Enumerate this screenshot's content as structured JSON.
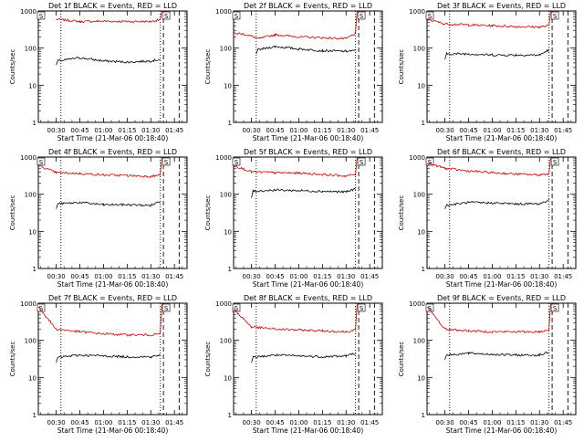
{
  "figure": {
    "background": "#ffffff"
  },
  "chart_data": [
    {
      "type": "line",
      "title": "Det 1f BLACK = Events, RED = LLD",
      "xlabel": "Start Time (21-Mar-06 00:18:40)",
      "ylabel": "Counts/sec",
      "yscale": "log",
      "ylim": [
        1,
        1000
      ],
      "xlim": [
        "00:18:40",
        "01:53:00"
      ],
      "x_ticks": [
        "00:30",
        "00:45",
        "01:00",
        "01:15",
        "01:30",
        "01:45"
      ],
      "y_ticks": [
        "1",
        "10",
        "100",
        "1000"
      ],
      "grid": false,
      "colors": {
        "events": "#000000",
        "lld": "#cc0000"
      },
      "markers": {
        "dashed": [
          "00:18:40",
          "01:38",
          "01:48"
        ],
        "dotted": [
          "00:33",
          "01:36"
        ]
      },
      "marker_label": "S",
      "series": [
        {
          "name": "RED = LLD",
          "x": [
            "00:30",
            "00:45",
            "01:00",
            "01:15",
            "01:30",
            "01:36",
            "01:37"
          ],
          "values": [
            600,
            520,
            530,
            520,
            520,
            580,
            1000
          ]
        },
        {
          "name": "BLACK = Events",
          "x": [
            "00:30",
            "00:31",
            "00:45",
            "01:00",
            "01:15",
            "01:30",
            "01:36"
          ],
          "values": [
            35,
            45,
            55,
            45,
            42,
            45,
            50
          ]
        }
      ]
    },
    {
      "type": "line",
      "title": "Det 2f BLACK = Events, RED = LLD",
      "xlabel": "Start Time (21-Mar-06 00:18:40)",
      "ylabel": "Counts/sec",
      "yscale": "log",
      "ylim": [
        1,
        1000
      ],
      "xlim": [
        "00:18:40",
        "01:53:00"
      ],
      "x_ticks": [
        "00:30",
        "00:45",
        "01:00",
        "01:15",
        "01:30",
        "01:45"
      ],
      "y_ticks": [
        "1",
        "10",
        "100",
        "1000"
      ],
      "grid": false,
      "colors": {
        "events": "#000000",
        "lld": "#cc0000"
      },
      "markers": {
        "dashed": [
          "00:18:40",
          "01:38",
          "01:48"
        ],
        "dotted": [
          "00:33",
          "01:36"
        ]
      },
      "marker_label": "S",
      "series": [
        {
          "name": "RED = LLD",
          "x": [
            "00:18:40",
            "00:25",
            "00:35",
            "00:45",
            "01:00",
            "01:15",
            "01:30",
            "01:36",
            "01:37"
          ],
          "values": [
            250,
            240,
            180,
            230,
            200,
            190,
            180,
            250,
            1000
          ]
        },
        {
          "name": "BLACK = Events",
          "x": [
            "00:33",
            "00:34",
            "00:45",
            "01:00",
            "01:15",
            "01:30",
            "01:36"
          ],
          "values": [
            70,
            90,
            110,
            95,
            85,
            82,
            85
          ]
        }
      ]
    },
    {
      "type": "line",
      "title": "Det 3f BLACK = Events, RED = LLD",
      "xlabel": "Start Time (21-Mar-06 00:18:40)",
      "ylabel": "Counts/sec",
      "yscale": "log",
      "ylim": [
        1,
        1000
      ],
      "xlim": [
        "00:18:40",
        "01:53:00"
      ],
      "x_ticks": [
        "00:30",
        "00:45",
        "01:00",
        "01:15",
        "01:30",
        "01:45"
      ],
      "y_ticks": [
        "1",
        "10",
        "100",
        "1000"
      ],
      "grid": false,
      "colors": {
        "events": "#000000",
        "lld": "#cc0000"
      },
      "markers": {
        "dashed": [
          "00:18:40",
          "01:38",
          "01:48"
        ],
        "dotted": [
          "00:33",
          "01:36"
        ]
      },
      "marker_label": "S",
      "series": [
        {
          "name": "RED = LLD",
          "x": [
            "00:18:40",
            "00:30",
            "00:45",
            "01:00",
            "01:15",
            "01:30",
            "01:36",
            "01:37"
          ],
          "values": [
            600,
            450,
            420,
            400,
            380,
            370,
            400,
            1000
          ]
        },
        {
          "name": "BLACK = Events",
          "x": [
            "00:30",
            "00:31",
            "00:45",
            "01:00",
            "01:15",
            "01:30",
            "01:36"
          ],
          "values": [
            50,
            70,
            70,
            65,
            65,
            65,
            90
          ]
        }
      ]
    },
    {
      "type": "line",
      "title": "Det 4f BLACK = Events, RED = LLD",
      "xlabel": "Start Time (21-Mar-06 00:18:40)",
      "ylabel": "Counts/sec",
      "yscale": "log",
      "ylim": [
        1,
        1000
      ],
      "xlim": [
        "00:18:40",
        "01:53:00"
      ],
      "x_ticks": [
        "00:30",
        "00:45",
        "01:00",
        "01:15",
        "01:30",
        "01:45"
      ],
      "y_ticks": [
        "1",
        "10",
        "100",
        "1000"
      ],
      "grid": false,
      "colors": {
        "events": "#000000",
        "lld": "#cc0000"
      },
      "markers": {
        "dashed": [
          "00:18:40",
          "01:38",
          "01:48"
        ],
        "dotted": [
          "00:33",
          "01:36"
        ]
      },
      "marker_label": "S",
      "series": [
        {
          "name": "RED = LLD",
          "x": [
            "00:18:40",
            "00:30",
            "00:45",
            "01:00",
            "01:15",
            "01:30",
            "01:36",
            "01:37"
          ],
          "values": [
            600,
            380,
            360,
            330,
            320,
            300,
            330,
            1000
          ]
        },
        {
          "name": "BLACK = Events",
          "x": [
            "00:30",
            "00:31",
            "00:45",
            "01:00",
            "01:15",
            "01:30",
            "01:36"
          ],
          "values": [
            40,
            55,
            60,
            52,
            52,
            50,
            65
          ]
        }
      ]
    },
    {
      "type": "line",
      "title": "Det 5f BLACK = Events, RED = LLD",
      "xlabel": "Start Time (21-Mar-06 00:18:40)",
      "ylabel": "Counts/sec",
      "yscale": "log",
      "ylim": [
        1,
        1000
      ],
      "xlim": [
        "00:18:40",
        "01:53:00"
      ],
      "x_ticks": [
        "00:30",
        "00:45",
        "01:00",
        "01:15",
        "01:30",
        "01:45"
      ],
      "y_ticks": [
        "1",
        "10",
        "100",
        "1000"
      ],
      "grid": false,
      "colors": {
        "events": "#000000",
        "lld": "#cc0000"
      },
      "markers": {
        "dashed": [
          "00:18:40",
          "01:38",
          "01:48"
        ],
        "dotted": [
          "00:33",
          "01:36"
        ]
      },
      "marker_label": "S",
      "series": [
        {
          "name": "RED = LLD",
          "x": [
            "00:18:40",
            "00:30",
            "00:45",
            "01:00",
            "01:15",
            "01:30",
            "01:36",
            "01:37"
          ],
          "values": [
            600,
            400,
            380,
            370,
            340,
            310,
            340,
            1000
          ]
        },
        {
          "name": "BLACK = Events",
          "x": [
            "00:30",
            "00:31",
            "00:45",
            "01:00",
            "01:15",
            "01:30",
            "01:36"
          ],
          "values": [
            80,
            120,
            130,
            125,
            120,
            115,
            140
          ]
        }
      ]
    },
    {
      "type": "line",
      "title": "Det 6f BLACK = Events, RED = LLD",
      "xlabel": "Start Time (21-Mar-06 00:18:40)",
      "ylabel": "Counts/sec",
      "yscale": "log",
      "ylim": [
        1,
        1000
      ],
      "xlim": [
        "00:18:40",
        "01:53:00"
      ],
      "x_ticks": [
        "00:30",
        "00:45",
        "01:00",
        "01:15",
        "01:30",
        "01:45"
      ],
      "y_ticks": [
        "1",
        "10",
        "100",
        "1000"
      ],
      "grid": false,
      "colors": {
        "events": "#000000",
        "lld": "#cc0000"
      },
      "markers": {
        "dashed": [
          "00:18:40",
          "01:38",
          "01:48"
        ],
        "dotted": [
          "00:33",
          "01:36"
        ]
      },
      "marker_label": "S",
      "series": [
        {
          "name": "RED = LLD",
          "x": [
            "00:18:40",
            "00:30",
            "00:45",
            "01:00",
            "01:15",
            "01:30",
            "01:36",
            "01:37"
          ],
          "values": [
            700,
            500,
            420,
            380,
            350,
            330,
            360,
            1000
          ]
        },
        {
          "name": "BLACK = Events",
          "x": [
            "00:30",
            "00:31",
            "00:45",
            "01:00",
            "01:15",
            "01:30",
            "01:36"
          ],
          "values": [
            40,
            50,
            60,
            58,
            55,
            55,
            70
          ]
        }
      ]
    },
    {
      "type": "line",
      "title": "Det 7f BLACK = Events, RED = LLD",
      "xlabel": "Start Time (21-Mar-06 00:18:40)",
      "ylabel": "Counts/sec",
      "yscale": "log",
      "ylim": [
        1,
        1000
      ],
      "xlim": [
        "00:18:40",
        "01:53:00"
      ],
      "x_ticks": [
        "00:30",
        "00:45",
        "01:00",
        "01:15",
        "01:30",
        "01:45"
      ],
      "y_ticks": [
        "1",
        "10",
        "100",
        "1000"
      ],
      "grid": false,
      "colors": {
        "events": "#000000",
        "lld": "#cc0000"
      },
      "markers": {
        "dashed": [
          "00:18:40",
          "01:38",
          "01:48"
        ],
        "dotted": [
          "00:33",
          "01:36"
        ]
      },
      "marker_label": "S",
      "series": [
        {
          "name": "RED = LLD",
          "x": [
            "00:18:40",
            "00:30",
            "00:45",
            "01:00",
            "01:15",
            "01:30",
            "01:36",
            "01:37"
          ],
          "values": [
            800,
            200,
            170,
            150,
            140,
            140,
            150,
            1000
          ]
        },
        {
          "name": "BLACK = Events",
          "x": [
            "00:30",
            "00:31",
            "00:45",
            "01:00",
            "01:15",
            "01:30",
            "01:36"
          ],
          "values": [
            25,
            35,
            40,
            38,
            36,
            36,
            40
          ]
        }
      ]
    },
    {
      "type": "line",
      "title": "Det 8f BLACK = Events, RED = LLD",
      "xlabel": "Start Time (21-Mar-06 00:18:40)",
      "ylabel": "Counts/sec",
      "yscale": "log",
      "ylim": [
        1,
        1000
      ],
      "xlim": [
        "00:18:40",
        "01:53:00"
      ],
      "x_ticks": [
        "00:30",
        "00:45",
        "01:00",
        "01:15",
        "01:30",
        "01:45"
      ],
      "y_ticks": [
        "1",
        "10",
        "100",
        "1000"
      ],
      "grid": false,
      "colors": {
        "events": "#000000",
        "lld": "#cc0000"
      },
      "markers": {
        "dashed": [
          "00:18:40",
          "01:38",
          "01:48"
        ],
        "dotted": [
          "00:33",
          "01:36"
        ]
      },
      "marker_label": "S",
      "series": [
        {
          "name": "RED = LLD",
          "x": [
            "00:18:40",
            "00:30",
            "00:45",
            "01:00",
            "01:15",
            "01:30",
            "01:36",
            "01:37"
          ],
          "values": [
            700,
            230,
            200,
            190,
            180,
            170,
            190,
            1000
          ]
        },
        {
          "name": "BLACK = Events",
          "x": [
            "00:30",
            "00:31",
            "00:45",
            "01:00",
            "01:15",
            "01:30",
            "01:36"
          ],
          "values": [
            25,
            35,
            40,
            38,
            36,
            38,
            45
          ]
        }
      ]
    },
    {
      "type": "line",
      "title": "Det 9f BLACK = Events, RED = LLD",
      "xlabel": "Start Time (21-Mar-06 00:18:40)",
      "ylabel": "Counts/sec",
      "yscale": "log",
      "ylim": [
        1,
        1000
      ],
      "xlim": [
        "00:18:40",
        "01:53:00"
      ],
      "x_ticks": [
        "00:30",
        "00:45",
        "01:00",
        "01:15",
        "01:30",
        "01:45"
      ],
      "y_ticks": [
        "1",
        "10",
        "100",
        "1000"
      ],
      "grid": false,
      "colors": {
        "events": "#000000",
        "lld": "#cc0000"
      },
      "markers": {
        "dashed": [
          "00:18:40",
          "01:38",
          "01:48"
        ],
        "dotted": [
          "00:33",
          "01:36"
        ]
      },
      "marker_label": "S",
      "series": [
        {
          "name": "RED = LLD",
          "x": [
            "00:18:40",
            "00:30",
            "00:45",
            "01:00",
            "01:15",
            "01:30",
            "01:36",
            "01:37"
          ],
          "values": [
            800,
            200,
            180,
            170,
            170,
            170,
            190,
            1000
          ]
        },
        {
          "name": "BLACK = Events",
          "x": [
            "00:30",
            "00:31",
            "00:45",
            "01:00",
            "01:15",
            "01:30",
            "01:36"
          ],
          "values": [
            30,
            40,
            45,
            42,
            40,
            40,
            48
          ]
        }
      ]
    }
  ]
}
